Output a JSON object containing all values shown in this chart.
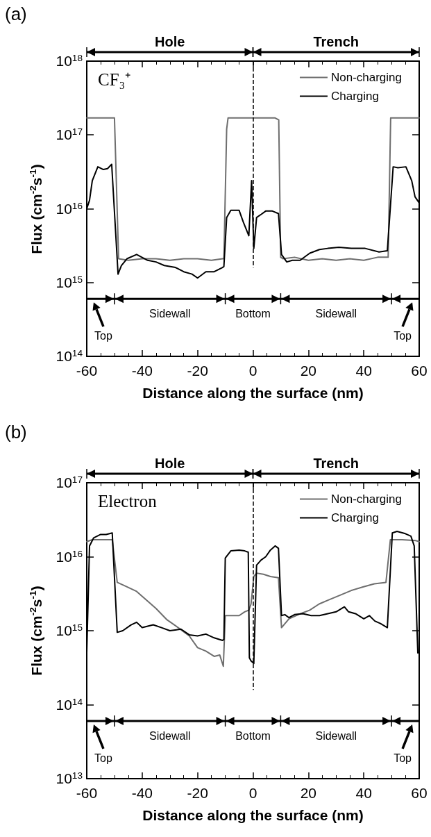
{
  "chart_data": [
    {
      "type": "line",
      "title": "(a)",
      "xlabel": "Distance along the surface (nm)",
      "ylabel": "Flux (cm$^{-2}$s$^{-1}$)",
      "annotations": [
        "CF₃⁺",
        "Hole",
        "Trench",
        "Sidewall",
        "Bottom",
        "Sidewall",
        "Top",
        "Top"
      ],
      "xlim": [
        -60,
        60
      ],
      "xticks": [
        -60,
        -40,
        -20,
        0,
        20,
        40,
        60
      ],
      "ylim": [
        100000000000000.0,
        1e+18
      ],
      "yticks": [
        {
          "value": 100000000000000.0,
          "label": "10$^{14}$"
        },
        {
          "value": 1000000000000000.0,
          "label": "10$^{15}$"
        },
        {
          "value": 1e+16,
          "label": "10$^{16}$"
        },
        {
          "value": 1e+17,
          "label": "10$^{17}$"
        },
        {
          "value": 1e+18,
          "label": "10$^{18}$"
        }
      ],
      "log": "y",
      "legend": "top right",
      "ref_lines": [
        {
          "axis": "x",
          "value": 0,
          "color": "#000000",
          "line_style": "dashed"
        }
      ],
      "series": [
        {
          "name": "Non-charging",
          "color": "#6e6e6e",
          "x": [
            -60,
            -55,
            -51,
            -50,
            -48.5,
            -45,
            -40,
            -35,
            -30,
            -25,
            -20,
            -15,
            -11,
            -10.5,
            -9.5,
            -9,
            -5,
            0,
            5,
            8,
            9.3,
            10,
            10.8,
            15,
            20,
            25,
            30,
            35,
            40,
            45,
            48.8,
            49.7,
            55,
            60
          ],
          "values": [
            1.7e+17,
            1.7e+17,
            1.7e+17,
            1.7e+17,
            2100000000000000.0,
            2000000000000000.0,
            2100000000000000.0,
            2100000000000000.0,
            2000000000000000.0,
            2100000000000000.0,
            2100000000000000.0,
            2000000000000000.0,
            2100000000000000.0,
            2100000000000000.0,
            1.2e+17,
            1.7e+17,
            1.7e+17,
            1.7e+17,
            1.7e+17,
            1.7e+17,
            1.6e+17,
            2200000000000000.0,
            2100000000000000.0,
            2200000000000000.0,
            2000000000000000.0,
            2100000000000000.0,
            2000000000000000.0,
            2100000000000000.0,
            2000000000000000.0,
            2200000000000000.0,
            2200000000000000.0,
            1.7e+17,
            1.7e+17,
            1.7e+17
          ]
        },
        {
          "name": "Charging",
          "color": "#000000",
          "x": [
            -60,
            -59,
            -58,
            -56,
            -54,
            -52.5,
            -51,
            -48.7,
            -47.5,
            -45.5,
            -42,
            -38,
            -35,
            -32,
            -28,
            -25,
            -22,
            -20,
            -17,
            -14,
            -11,
            -10.5,
            -9.5,
            -8,
            -5,
            -3.5,
            -1.5,
            -0.5,
            0.3,
            1.3,
            3,
            4.6,
            7,
            9.2,
            10.3,
            12.2,
            14.2,
            17,
            20.5,
            24,
            27,
            31,
            35.5,
            40.5,
            45.5,
            48.5,
            50.6,
            52.3,
            55.2,
            57.3,
            58.5,
            60
          ],
          "values": [
            1e+16,
            1.3e+16,
            2.4e+16,
            3.7e+16,
            3.4e+16,
            3.5e+16,
            4e+16,
            1300000000000000.0,
            1700000000000000.0,
            2100000000000000.0,
            2400000000000000.0,
            2000000000000000.0,
            1900000000000000.0,
            1700000000000000.0,
            1600000000000000.0,
            1400000000000000.0,
            1300000000000000.0,
            1150000000000000.0,
            1400000000000000.0,
            1400000000000000.0,
            1600000000000000.0,
            1650000000000000.0,
            7600000000000000.0,
            9500000000000000.0,
            9500000000000000.0,
            6600000000000000.0,
            4300000000000000.0,
            2.4e+16,
            2900000000000000.0,
            7600000000000000.0,
            8400000000000000.0,
            9300000000000000.0,
            9300000000000000.0,
            8600000000000000.0,
            2400000000000000.0,
            1900000000000000.0,
            2000000000000000.0,
            2000000000000000.0,
            2500000000000000.0,
            2800000000000000.0,
            2900000000000000.0,
            3000000000000000.0,
            2900000000000000.0,
            2900000000000000.0,
            2600000000000000.0,
            2700000000000000.0,
            3.7e+16,
            3.6e+16,
            3.7e+16,
            2.4e+16,
            1.45e+16,
            1.2e+16
          ]
        }
      ]
    },
    {
      "type": "line",
      "title": "(b)",
      "xlabel": "Distance along the surface (nm)",
      "ylabel": "Flux (cm$^{-2}$s$^{-1}$)",
      "annotations": [
        "Electron",
        "Hole",
        "Trench",
        "Sidewall",
        "Bottom",
        "Sidewall",
        "Top",
        "Top"
      ],
      "xlim": [
        -60,
        60
      ],
      "xticks": [
        -60,
        -40,
        -20,
        0,
        20,
        40,
        60
      ],
      "ylim": [
        10000000000000.0,
        1e+17
      ],
      "yticks": [
        {
          "value": 10000000000000.0,
          "label": "10$^{13}$"
        },
        {
          "value": 100000000000000.0,
          "label": "10$^{14}$"
        },
        {
          "value": 1000000000000000.0,
          "label": "10$^{15}$"
        },
        {
          "value": 1e+16,
          "label": "10$^{16}$"
        },
        {
          "value": 1e+17,
          "label": "10$^{17}$"
        }
      ],
      "log": "y",
      "legend": "top right",
      "ref_lines": [
        {
          "axis": "x",
          "value": 0,
          "color": "#000000",
          "line_style": "dashed"
        }
      ],
      "series": [
        {
          "name": "Non-charging",
          "color": "#6e6e6e",
          "x": [
            -60,
            -58,
            -55,
            -50.8,
            -49,
            -46,
            -42,
            -38,
            -35,
            -31,
            -27,
            -23,
            -20,
            -17,
            -14,
            -12,
            -10.7,
            -10,
            -8,
            -5,
            -3,
            -1.5,
            -0.7,
            0.3,
            1.3,
            3.8,
            6.3,
            9.2,
            10.3,
            13,
            17.2,
            20.5,
            23.9,
            27.2,
            31.3,
            35.5,
            39.7,
            43.8,
            48,
            49.6,
            53.8,
            58.8,
            60
          ],
          "values": [
            1.6e+16,
            1.7e+16,
            1.7e+16,
            1.7e+16,
            4500000000000000.0,
            4000000000000000.0,
            3400000000000000.0,
            2500000000000000.0,
            2000000000000000.0,
            1400000000000000.0,
            1100000000000000.0,
            850000000000000.0,
            590000000000000.0,
            530000000000000.0,
            450000000000000.0,
            470000000000000.0,
            330000000000000.0,
            1600000000000000.0,
            1600000000000000.0,
            1600000000000000.0,
            1800000000000000.0,
            1900000000000000.0,
            2300000000000000.0,
            5400000000000000.0,
            6000000000000000.0,
            5800000000000000.0,
            5400000000000000.0,
            5200000000000000.0,
            1100000000000000.0,
            1450000000000000.0,
            1700000000000000.0,
            1900000000000000.0,
            2300000000000000.0,
            2600000000000000.0,
            3000000000000000.0,
            3500000000000000.0,
            3900000000000000.0,
            4300000000000000.0,
            4500000000000000.0,
            1.7e+16,
            1.7e+16,
            1.65e+16,
            1.6e+16
          ]
        },
        {
          "name": "Charging",
          "color": "#000000",
          "x": [
            -60,
            -59,
            -57.5,
            -55,
            -53,
            -50.8,
            -49,
            -47,
            -44,
            -42,
            -40,
            -36,
            -33,
            -30,
            -26,
            -23,
            -20,
            -17,
            -14,
            -11,
            -10.5,
            -10,
            -8,
            -5,
            -3,
            -1.7,
            -1.3,
            -0.7,
            0,
            0.3,
            1.3,
            2.9,
            4.6,
            6.3,
            8,
            9.2,
            10.3,
            11.5,
            13,
            15,
            18,
            21,
            24,
            27,
            30,
            33,
            34.5,
            37,
            40,
            42,
            44,
            46,
            48.5,
            50.3,
            52,
            55,
            57,
            58.2,
            59.5
          ],
          "values": [
            500000000000000.0,
            1.4e+16,
            1.8e+16,
            2e+16,
            2e+16,
            2.1e+16,
            950000000000000.0,
            1000000000000000.0,
            1200000000000000.0,
            1300000000000000.0,
            1100000000000000.0,
            1200000000000000.0,
            1100000000000000.0,
            1000000000000000.0,
            1050000000000000.0,
            880000000000000.0,
            850000000000000.0,
            900000000000000.0,
            800000000000000.0,
            740000000000000.0,
            760000000000000.0,
            9600000000000000.0,
            1.2e+16,
            1.23e+16,
            1.2e+16,
            1.15e+16,
            430000000000000.0,
            390000000000000.0,
            370000000000000.0,
            360000000000000.0,
            7700000000000000.0,
            9000000000000000.0,
            1e+16,
            1.23e+16,
            1.4e+16,
            1.3e+16,
            1600000000000000.0,
            1650000000000000.0,
            1500000000000000.0,
            1650000000000000.0,
            1700000000000000.0,
            1600000000000000.0,
            1600000000000000.0,
            1700000000000000.0,
            1800000000000000.0,
            2100000000000000.0,
            1800000000000000.0,
            1700000000000000.0,
            1450000000000000.0,
            1600000000000000.0,
            1350000000000000.0,
            1250000000000000.0,
            1100000000000000.0,
            2.1e+16,
            2.2e+16,
            2.05e+16,
            1.9e+16,
            1.4e+16,
            500000000000000.0
          ]
        }
      ]
    }
  ]
}
